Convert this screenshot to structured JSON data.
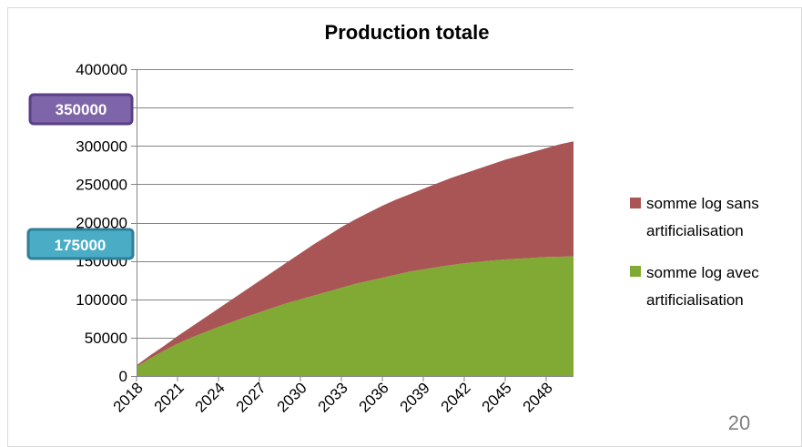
{
  "chart_data": {
    "type": "area",
    "stacked": true,
    "title": "Production totale",
    "xlabel": "",
    "ylabel": "",
    "x": [
      2018,
      2019,
      2020,
      2021,
      2022,
      2023,
      2024,
      2025,
      2026,
      2027,
      2028,
      2029,
      2030,
      2031,
      2032,
      2033,
      2034,
      2035,
      2036,
      2037,
      2038,
      2039,
      2040,
      2041,
      2042,
      2043,
      2044,
      2045,
      2046,
      2047,
      2048,
      2049,
      2050
    ],
    "x_tick_labels": [
      "2018",
      "2021",
      "2024",
      "2027",
      "2030",
      "2033",
      "2036",
      "2039",
      "2042",
      "2045",
      "2048"
    ],
    "ylim": [
      0,
      400000
    ],
    "y_ticks": [
      0,
      50000,
      100000,
      150000,
      200000,
      250000,
      300000,
      350000,
      400000
    ],
    "grid": true,
    "legend_position": "right",
    "series": [
      {
        "name": "somme log avec artificialisation",
        "color": "#80AA33",
        "values": [
          12000,
          23000,
          33000,
          42000,
          50000,
          57000,
          64000,
          70500,
          77000,
          83000,
          89000,
          95000,
          100000,
          105000,
          110000,
          115000,
          120000,
          124000,
          128000,
          132000,
          136000,
          139000,
          142000,
          144500,
          147000,
          149000,
          150500,
          152000,
          153000,
          154000,
          155000,
          155500,
          156000
        ]
      },
      {
        "name": "somme log sans artificialisation",
        "color": "#AA5555",
        "values": [
          2000,
          4000,
          6000,
          10000,
          14000,
          19000,
          24000,
          29500,
          35000,
          41000,
          47000,
          53000,
          60000,
          67000,
          73000,
          79000,
          84000,
          89000,
          94000,
          98000,
          101000,
          105000,
          109000,
          113500,
          117000,
          121000,
          125500,
          130000,
          134000,
          138000,
          142000,
          146500,
          150000
        ]
      }
    ],
    "annotations": [
      {
        "text": "350000",
        "color": "#8064A2"
      },
      {
        "text": "175000",
        "color": "#4BACC6"
      }
    ]
  },
  "slide_number": "20"
}
